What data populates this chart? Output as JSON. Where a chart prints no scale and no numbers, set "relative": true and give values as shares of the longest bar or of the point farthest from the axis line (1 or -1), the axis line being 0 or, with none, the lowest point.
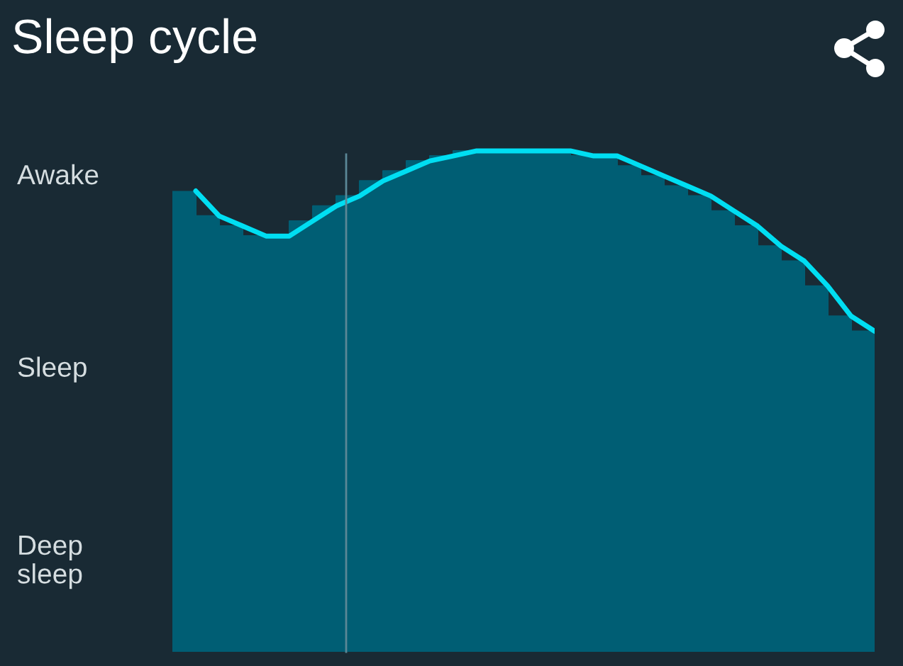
{
  "chart_data": {
    "type": "step",
    "title": "Sleep cycle",
    "relative": true,
    "categories": [
      null,
      null,
      null,
      null,
      null,
      null,
      null,
      null,
      null,
      null,
      null,
      null,
      null,
      null,
      null,
      null,
      null,
      null,
      null,
      null,
      null,
      null,
      null,
      null,
      null,
      null,
      null,
      null,
      null,
      null
    ],
    "series": [
      {
        "color": "#005e74",
        "values": [
          0.92,
          0.87,
          0.85,
          0.83,
          0.83,
          0.86,
          0.89,
          0.91,
          0.94,
          0.96,
          0.98,
          0.99,
          1.0,
          1.0,
          1.0,
          1.0,
          1.0,
          0.99,
          0.99,
          0.97,
          0.95,
          0.93,
          0.91,
          0.88,
          0.85,
          0.81,
          0.78,
          0.73,
          0.67,
          0.64
        ]
      },
      {
        "type": "line",
        "color": "#00def2",
        "values": [
          0.92,
          0.87,
          0.85,
          0.83,
          0.83,
          0.86,
          0.89,
          0.91,
          0.94,
          0.96,
          0.98,
          0.99,
          1.0,
          1.0,
          1.0,
          1.0,
          1.0,
          0.99,
          0.99,
          0.97,
          0.95,
          0.93,
          0.91,
          0.88,
          0.85,
          0.81,
          0.78,
          0.73,
          0.67,
          0.64
        ]
      }
    ],
    "annotations": [
      "Awake",
      "Sleep",
      "Deep\nsleep"
    ],
    "line_style": "solid"
  }
}
